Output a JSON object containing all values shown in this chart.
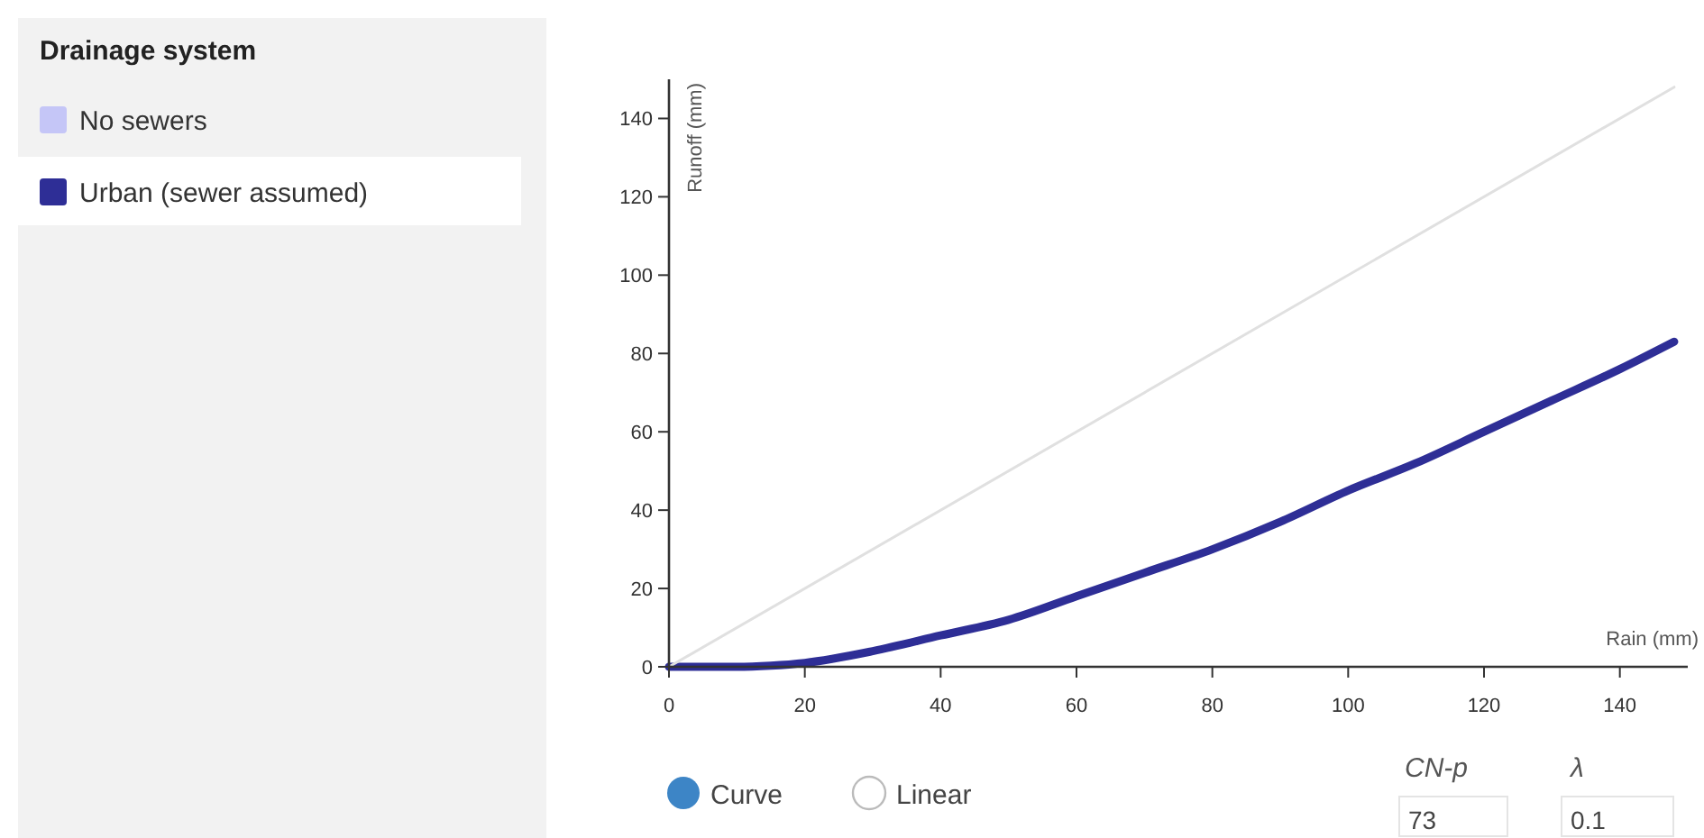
{
  "chart_data": {
    "type": "line",
    "xlabel": "Rain (mm)",
    "ylabel": "Runoff (mm)",
    "legend_title": "Drainage system",
    "legend": "left",
    "x": [
      0,
      10,
      15,
      20,
      30,
      40,
      50,
      60,
      70,
      80,
      90,
      100,
      110,
      120,
      130,
      140,
      148
    ],
    "xlim": [
      0,
      150
    ],
    "xticks": [
      0,
      20,
      40,
      60,
      80,
      100,
      120,
      140
    ],
    "ylim": [
      0,
      150
    ],
    "yticks": [
      0,
      20,
      40,
      60,
      80,
      100,
      120,
      140
    ],
    "grid": false,
    "series": [
      {
        "name": "No sewers",
        "color": "#c5c6f7",
        "values": [
          null,
          null,
          null,
          null,
          null,
          null,
          null,
          null,
          null,
          null,
          null,
          null,
          null,
          null,
          null,
          null,
          null
        ]
      },
      {
        "name": "Urban (sewer assumed)",
        "color": "#2e2e96",
        "values": [
          0,
          0,
          0.3,
          1,
          4,
          8,
          12,
          18,
          24,
          30,
          37,
          45,
          52,
          60,
          68,
          76,
          83
        ]
      },
      {
        "type": "line",
        "color": "#e0e0e0",
        "x": [
          0,
          148
        ],
        "values": [
          0,
          148
        ]
      }
    ],
    "annotations": [
      "Curve",
      "Linear",
      "CN-p",
      "73",
      "λ",
      "0.1"
    ]
  }
}
